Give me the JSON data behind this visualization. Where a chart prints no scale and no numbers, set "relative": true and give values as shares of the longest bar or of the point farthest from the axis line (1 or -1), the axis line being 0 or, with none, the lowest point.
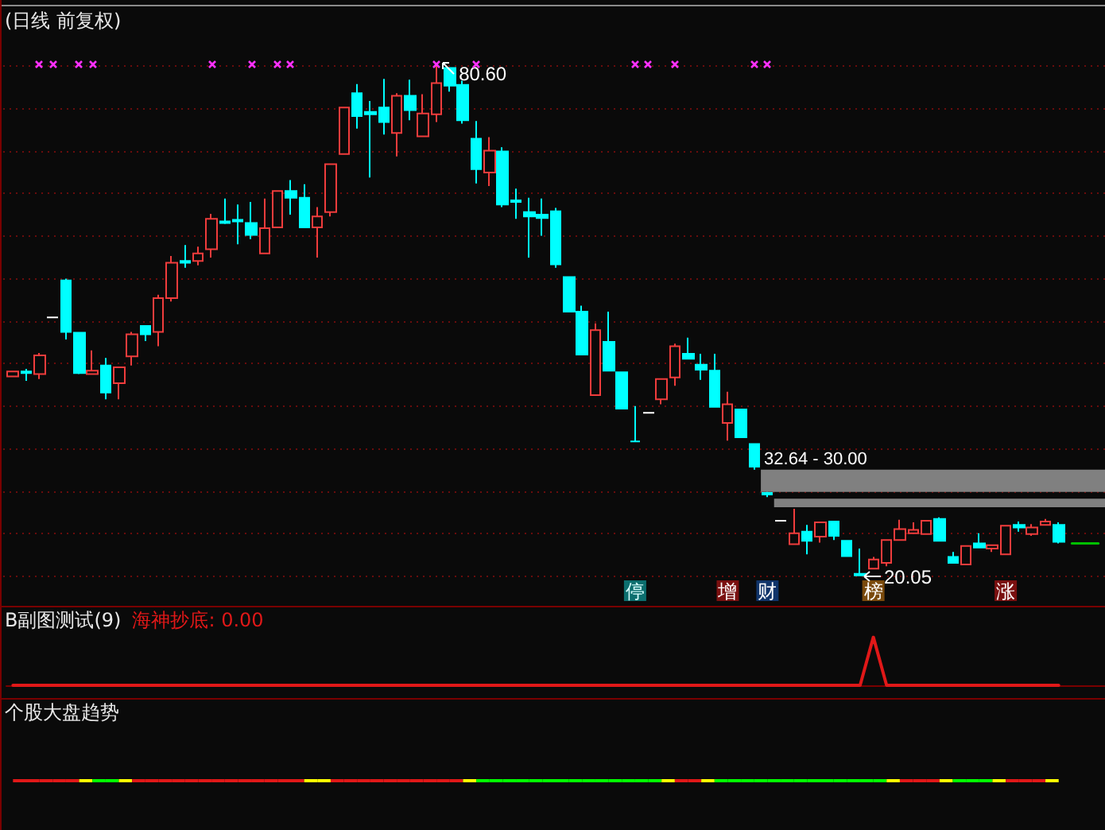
{
  "chart_data": [
    {
      "type": "candlestick",
      "title": "(日线 前复权)",
      "categories": [
        null,
        null,
        null,
        null,
        null,
        null,
        null,
        null,
        null,
        null,
        null,
        null,
        null,
        null,
        null,
        null,
        null,
        null,
        null,
        null,
        null,
        null,
        null,
        null,
        null,
        null,
        null,
        null,
        null,
        null,
        null,
        null,
        null,
        null,
        null,
        null,
        null,
        null,
        null,
        null,
        null,
        null,
        null,
        null,
        null,
        null,
        null,
        "停",
        null,
        null,
        null,
        null,
        null,
        null,
        "增",
        null,
        null,
        "财",
        null,
        null,
        null,
        null,
        null,
        null,
        null,
        "榜",
        null,
        null,
        null,
        null,
        null,
        null,
        null,
        null,
        null,
        "涨",
        null,
        null,
        null,
        null,
        null,
        null,
        null
      ],
      "ohlc": [
        [
          43.7,
          44.3,
          43.7,
          44.3
        ],
        [
          44.3,
          44.6,
          43.2,
          44.1
        ],
        [
          44.0,
          46.5,
          43.4,
          46.2
        ],
        [
          50.7,
          50.7,
          50.7,
          50.7
        ],
        [
          55.1,
          55.3,
          48.1,
          49.0
        ],
        [
          48.9,
          48.9,
          44.0,
          44.1
        ],
        [
          44.0,
          46.8,
          44.0,
          44.4
        ],
        [
          45.0,
          45.9,
          41.0,
          41.8
        ],
        [
          42.9,
          44.8,
          41.0,
          44.8
        ],
        [
          46.1,
          49.0,
          45.0,
          48.7
        ],
        [
          49.7,
          49.7,
          47.9,
          48.7
        ],
        [
          49.0,
          53.4,
          47.3,
          53.0
        ],
        [
          53.0,
          58.0,
          52.6,
          57.2
        ],
        [
          57.4,
          59.3,
          56.6,
          57.2
        ],
        [
          57.4,
          59.1,
          56.9,
          58.3
        ],
        [
          58.8,
          63.0,
          57.8,
          62.4
        ],
        [
          62.1,
          64.8,
          61.8,
          61.9
        ],
        [
          62.3,
          64.1,
          59.4,
          62.1
        ],
        [
          61.9,
          64.4,
          60.0,
          60.5
        ],
        [
          58.3,
          64.8,
          58.3,
          61.3
        ],
        [
          61.4,
          65.7,
          61.4,
          65.7
        ],
        [
          65.7,
          67.0,
          62.9,
          64.9
        ],
        [
          64.9,
          66.5,
          61.4,
          61.4
        ],
        [
          61.4,
          63.8,
          57.8,
          62.7
        ],
        [
          63.2,
          68.9,
          62.7,
          68.9
        ],
        [
          70.1,
          75.6,
          70.1,
          75.6
        ],
        [
          77.3,
          78.4,
          73.1,
          74.6
        ],
        [
          75.1,
          76.4,
          67.3,
          74.8
        ],
        [
          75.6,
          79.0,
          72.4,
          73.9
        ],
        [
          72.6,
          77.3,
          69.8,
          77.0
        ],
        [
          77.0,
          78.9,
          74.1,
          75.3
        ],
        [
          72.2,
          77.2,
          72.2,
          74.9
        ],
        [
          74.8,
          80.6,
          73.9,
          78.5
        ],
        [
          80.3,
          80.3,
          77.5,
          78.2
        ],
        [
          78.3,
          78.8,
          73.7,
          74.1
        ],
        [
          71.9,
          74.0,
          66.6,
          68.3
        ],
        [
          67.9,
          72.1,
          66.3,
          70.5
        ],
        [
          70.4,
          70.9,
          63.8,
          64.1
        ],
        [
          64.6,
          66.0,
          62.4,
          64.4
        ],
        [
          63.2,
          64.9,
          57.8,
          62.7
        ],
        [
          62.9,
          64.8,
          60.4,
          62.5
        ],
        [
          63.3,
          63.7,
          56.6,
          57.0
        ],
        [
          55.5,
          55.5,
          51.4,
          51.4
        ],
        [
          51.4,
          52.1,
          46.3,
          46.3
        ],
        [
          41.5,
          50.0,
          41.5,
          49.2
        ],
        [
          47.8,
          51.4,
          44.4,
          44.4
        ],
        [
          44.2,
          44.2,
          39.9,
          39.9
        ],
        [
          36.0,
          40.2,
          36.0,
          36.0
        ],
        [
          39.4,
          39.4,
          39.4,
          39.4
        ],
        [
          41.0,
          43.4,
          40.4,
          43.4
        ],
        [
          43.6,
          47.6,
          42.6,
          47.3
        ],
        [
          46.4,
          48.3,
          45.8,
          45.8
        ],
        [
          45.1,
          46.4,
          43.3,
          44.5
        ],
        [
          44.4,
          46.4,
          40.1,
          40.1
        ],
        [
          38.2,
          41.9,
          36.1,
          40.4
        ],
        [
          39.8,
          39.8,
          36.5,
          36.5
        ],
        [
          35.7,
          35.7,
          32.64,
          33.0
        ],
        [
          29.9,
          30.0,
          29.4,
          29.7
        ],
        [
          26.6,
          26.6,
          26.6,
          26.6
        ],
        [
          23.8,
          28.0,
          23.8,
          25.1
        ],
        [
          25.3,
          26.1,
          22.6,
          24.2
        ],
        [
          24.7,
          26.4,
          24.0,
          26.4
        ],
        [
          26.5,
          26.5,
          24.3,
          24.8
        ],
        [
          24.2,
          24.2,
          22.4,
          22.4
        ],
        [
          20.3,
          23.3,
          20.05,
          20.1
        ],
        [
          20.9,
          22.3,
          20.9,
          22.0
        ],
        [
          21.6,
          24.3,
          21.2,
          24.3
        ],
        [
          24.3,
          26.7,
          24.3,
          25.6
        ],
        [
          25.1,
          26.4,
          25.1,
          25.5
        ],
        [
          25.0,
          26.6,
          25.0,
          26.6
        ],
        [
          26.8,
          27.0,
          24.2,
          24.2
        ],
        [
          22.3,
          22.9,
          21.6,
          21.6
        ],
        [
          21.4,
          23.6,
          21.4,
          23.6
        ],
        [
          23.9,
          25.1,
          23.4,
          23.4
        ],
        [
          23.3,
          23.7,
          22.9,
          23.7
        ],
        [
          22.6,
          26.0,
          22.6,
          26.0
        ],
        [
          26.1,
          26.5,
          25.3,
          25.8
        ],
        [
          25.0,
          26.2,
          24.8,
          25.8
        ],
        [
          26.1,
          26.8,
          26.1,
          26.5
        ],
        [
          26.1,
          26.4,
          23.9,
          24.1
        ],
        null,
        null,
        null
      ],
      "colors": [
        "#f03c3c",
        "#00ffff",
        "#f03c3c",
        "#ffffff",
        "#00ffff",
        "#00ffff",
        "#f03c3c",
        "#00ffff",
        "#f03c3c",
        "#f03c3c",
        "#00ffff",
        "#f03c3c",
        "#f03c3c",
        "#00ffff",
        "#f03c3c",
        "#f03c3c",
        "#00ffff",
        "#00ffff",
        "#00ffff",
        "#f03c3c",
        "#f03c3c",
        "#00ffff",
        "#00ffff",
        "#f03c3c",
        "#f03c3c",
        "#f03c3c",
        "#00ffff",
        "#00ffff",
        "#00ffff",
        "#f03c3c",
        "#00ffff",
        "#f03c3c",
        "#f03c3c",
        "#00ffff",
        "#00ffff",
        "#00ffff",
        "#f03c3c",
        "#00ffff",
        "#00ffff",
        "#00ffff",
        "#00ffff",
        "#00ffff",
        "#00ffff",
        "#00ffff",
        "#f03c3c",
        "#00ffff",
        "#00ffff",
        "#00ffff",
        "#ffffff",
        "#f03c3c",
        "#f03c3c",
        "#00ffff",
        "#00ffff",
        "#00ffff",
        "#f03c3c",
        "#00ffff",
        "#00ffff",
        "#00ffff",
        "#ffffff",
        "#f03c3c",
        "#00ffff",
        "#f03c3c",
        "#00ffff",
        "#00ffff",
        "#00ffff",
        "#f03c3c",
        "#f03c3c",
        "#f03c3c",
        "#f03c3c",
        "#f03c3c",
        "#00ffff",
        "#00ffff",
        "#f03c3c",
        "#00ffff",
        "#f03c3c",
        "#f03c3c",
        "#00ffff",
        "#f03c3c",
        "#f03c3c",
        "#00ffff",
        null,
        null,
        null
      ],
      "series": [
        {
          "type": "line",
          "color": "#00c000",
          "values": [
            null,
            null,
            null,
            null,
            null,
            null,
            null,
            null,
            null,
            null,
            null,
            null,
            null,
            null,
            null,
            null,
            null,
            null,
            null,
            null,
            null,
            null,
            null,
            null,
            null,
            null,
            null,
            null,
            null,
            null,
            null,
            null,
            null,
            null,
            null,
            null,
            null,
            null,
            null,
            null,
            null,
            null,
            null,
            null,
            null,
            null,
            null,
            null,
            null,
            null,
            null,
            null,
            null,
            null,
            null,
            null,
            null,
            null,
            null,
            null,
            null,
            null,
            null,
            null,
            null,
            null,
            null,
            null,
            null,
            null,
            null,
            null,
            null,
            null,
            null,
            null,
            null,
            null,
            null,
            null,
            23.9,
            23.9,
            23.9
          ]
        }
      ],
      "ylim": [
        16.5,
        87.8
      ],
      "yticks": [
        {
          "value": 20.05,
          "label": null
        },
        {
          "value": 25.1,
          "label": null
        },
        {
          "value": 30.1,
          "label": null
        },
        {
          "value": 35.2,
          "label": null
        },
        {
          "value": 40.2,
          "label": null
        },
        {
          "value": 45.3,
          "label": null
        },
        {
          "value": 50.3,
          "label": null
        },
        {
          "value": 55.4,
          "label": null
        },
        {
          "value": 60.4,
          "label": null
        },
        {
          "value": 65.5,
          "label": null
        },
        {
          "value": 70.5,
          "label": null
        },
        {
          "value": 75.6,
          "label": null
        },
        {
          "value": 80.6,
          "label": null
        }
      ],
      "grid": "y",
      "tick_labels": "x",
      "annotations": [
        "80.60",
        "20.05"
      ],
      "bands": [
        {
          "axis": "y",
          "from": 30.0,
          "to": 32.64,
          "label": "32.64 - 30.00",
          "color": "#808080"
        },
        {
          "axis": "y",
          "from": 28.2,
          "to": 29.2,
          "color": "#808080"
        }
      ]
    },
    {
      "type": "line",
      "title": "B副图测试(9)",
      "relative": true,
      "categories": [
        null,
        null,
        null,
        null,
        null,
        null,
        null,
        null,
        null,
        null,
        null,
        null,
        null,
        null,
        null,
        null,
        null,
        null,
        null,
        null,
        null,
        null,
        null,
        null,
        null,
        null,
        null,
        null,
        null,
        null,
        null,
        null,
        null,
        null,
        null,
        null,
        null,
        null,
        null,
        null,
        null,
        null,
        null,
        null,
        null,
        null,
        null,
        null,
        null,
        null,
        null,
        null,
        null,
        null,
        null,
        null,
        null,
        null,
        null,
        null,
        null,
        null,
        null,
        null,
        null,
        null,
        null,
        null,
        null,
        null,
        null,
        null,
        null,
        null,
        null,
        null,
        null,
        null,
        null,
        null,
        null,
        null,
        null
      ],
      "series": [
        {
          "name": "海神抄底: 0.00",
          "color": "#e01818",
          "values": [
            0,
            0,
            0,
            0,
            0,
            0,
            0,
            0,
            0,
            0,
            0,
            0,
            0,
            0,
            0,
            0,
            0,
            0,
            0,
            0,
            0,
            0,
            0,
            0,
            0,
            0,
            0,
            0,
            0,
            0,
            0,
            0,
            0,
            0,
            0,
            0,
            0,
            0,
            0,
            0,
            0,
            0,
            0,
            0,
            0,
            0,
            0,
            0,
            0,
            0,
            0,
            0,
            0,
            0,
            0,
            0,
            0,
            0,
            0,
            0,
            0,
            0,
            0,
            0,
            0,
            1,
            0,
            0,
            0,
            0,
            0,
            0,
            0,
            0,
            0,
            0,
            0,
            0,
            0,
            0,
            null,
            null,
            null
          ]
        }
      ]
    },
    {
      "type": "other",
      "title": "个股大盘趋势",
      "categories": [
        null,
        null,
        null,
        null,
        null,
        null,
        null,
        null,
        null,
        null,
        null,
        null,
        null,
        null,
        null,
        null,
        null,
        null,
        null,
        null,
        null,
        null,
        null,
        null,
        null,
        null,
        null,
        null,
        null,
        null,
        null,
        null,
        null,
        null,
        null,
        null,
        null,
        null,
        null,
        null,
        null,
        null,
        null,
        null,
        null,
        null,
        null,
        null,
        null,
        null,
        null,
        null,
        null,
        null,
        null,
        null,
        null,
        null,
        null,
        null,
        null,
        null,
        null,
        null,
        null,
        null,
        null,
        null,
        null,
        null,
        null,
        null,
        null,
        null,
        null,
        null,
        null,
        null,
        null,
        null,
        null,
        null,
        null
      ],
      "colors": [
        "#e01818",
        "#e01818",
        "#e01818",
        "#e01818",
        "#e01818",
        "#ffff00",
        "#00ff00",
        "#00ff00",
        "#ffff00",
        "#e01818",
        "#e01818",
        "#e01818",
        "#e01818",
        "#e01818",
        "#e01818",
        "#e01818",
        "#e01818",
        "#e01818",
        "#e01818",
        "#e01818",
        "#e01818",
        "#e01818",
        "#ffff00",
        "#ffff00",
        "#e01818",
        "#e01818",
        "#e01818",
        "#e01818",
        "#e01818",
        "#e01818",
        "#e01818",
        "#e01818",
        "#e01818",
        "#e01818",
        "#ffff00",
        "#00ff00",
        "#00ff00",
        "#00ff00",
        "#00ff00",
        "#00ff00",
        "#00ff00",
        "#00ff00",
        "#00ff00",
        "#00ff00",
        "#00ff00",
        "#00ff00",
        "#00ff00",
        "#00ff00",
        "#00ff00",
        "#ffff00",
        "#e01818",
        "#e01818",
        "#ffff00",
        "#00ff00",
        "#00ff00",
        "#00ff00",
        "#00ff00",
        "#00ff00",
        "#00ff00",
        "#00ff00",
        "#00ff00",
        "#00ff00",
        "#00ff00",
        "#00ff00",
        "#00ff00",
        "#00ff00",
        "#ffff00",
        "#e01818",
        "#e01818",
        "#e01818",
        "#ffff00",
        "#00ff00",
        "#00ff00",
        "#00ff00",
        "#ffff00",
        "#e01818",
        "#e01818",
        "#e01818",
        "#ffff00"
      ]
    }
  ]
}
